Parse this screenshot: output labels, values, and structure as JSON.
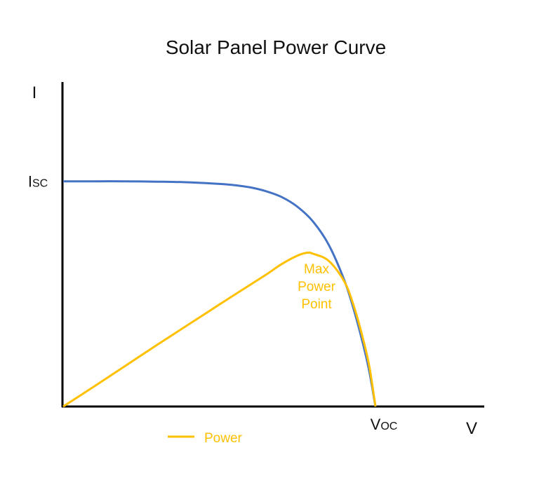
{
  "chart_data": {
    "type": "line",
    "title": "Solar Panel Power Curve",
    "xlabel": "V",
    "ylabel": "I",
    "xlim": [
      0,
      1
    ],
    "ylim": [
      0,
      1
    ],
    "grid": false,
    "legend_position": "bottom-left",
    "x_ticks": [
      {
        "main": "V",
        "sub": "OC",
        "value": 1.0
      }
    ],
    "y_ticks": [
      {
        "main": "I",
        "sub": "SC",
        "value": 0.7
      }
    ],
    "series": [
      {
        "key": "current",
        "color": "#4472c4",
        "x": [
          0,
          0.1,
          0.2,
          0.3,
          0.4,
          0.5,
          0.55,
          0.6,
          0.65,
          0.7,
          0.75,
          0.8,
          0.85,
          0.9,
          0.93,
          0.96,
          0.98,
          1.0
        ],
        "y": [
          0.7,
          0.7,
          0.7,
          0.699,
          0.697,
          0.692,
          0.688,
          0.681,
          0.669,
          0.651,
          0.621,
          0.575,
          0.503,
          0.393,
          0.303,
          0.195,
          0.11,
          0.0
        ]
      },
      {
        "key": "power",
        "name": "Power",
        "color": "#ffc000",
        "x": [
          0,
          0.1,
          0.2,
          0.3,
          0.4,
          0.5,
          0.6,
          0.65,
          0.7,
          0.75,
          0.78,
          0.8,
          0.85,
          0.9,
          0.93,
          0.96,
          0.98,
          1.0
        ],
        "y": [
          0.0,
          0.063,
          0.127,
          0.191,
          0.254,
          0.317,
          0.379,
          0.41,
          0.443,
          0.469,
          0.478,
          0.475,
          0.453,
          0.389,
          0.314,
          0.211,
          0.126,
          0.0
        ]
      }
    ],
    "annotations": [
      {
        "lines": [
          "Max",
          "Power",
          "Point"
        ],
        "color": "#ffc000"
      }
    ]
  }
}
